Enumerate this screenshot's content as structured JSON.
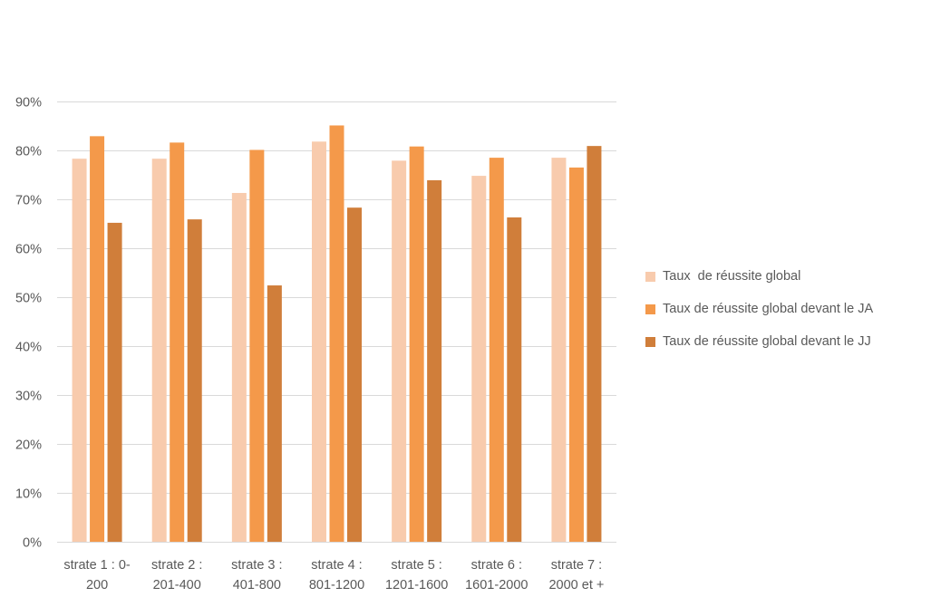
{
  "chart_data": {
    "type": "bar",
    "categories": [
      [
        "strate 1 : 0-",
        "200"
      ],
      [
        "strate 2 :",
        "201-400"
      ],
      [
        "strate 3 :",
        "401-800"
      ],
      [
        "strate 4 :",
        "801-1200"
      ],
      [
        "strate 5 :",
        "1201-1600"
      ],
      [
        "strate 6 :",
        "1601-2000"
      ],
      [
        "strate 7 :",
        "2000 et +"
      ]
    ],
    "series": [
      {
        "name": "Taux  de réussite global",
        "color": "#F8CBAD",
        "values": [
          0.783,
          0.783,
          0.713,
          0.818,
          0.779,
          0.748,
          0.785
        ]
      },
      {
        "name": "Taux de réussite global devant le JA",
        "color": "#F4994A",
        "values": [
          0.829,
          0.816,
          0.801,
          0.851,
          0.808,
          0.785,
          0.765
        ]
      },
      {
        "name": "Taux de réussite global devant le JJ",
        "color": "#D07E3A",
        "values": [
          0.652,
          0.659,
          0.524,
          0.683,
          0.739,
          0.663,
          0.809
        ]
      }
    ],
    "ylim": [
      0,
      0.9
    ],
    "yticks": [
      "0%",
      "10%",
      "20%",
      "30%",
      "40%",
      "50%",
      "60%",
      "70%",
      "80%",
      "90%"
    ],
    "grid": true,
    "legend_position": "right"
  }
}
